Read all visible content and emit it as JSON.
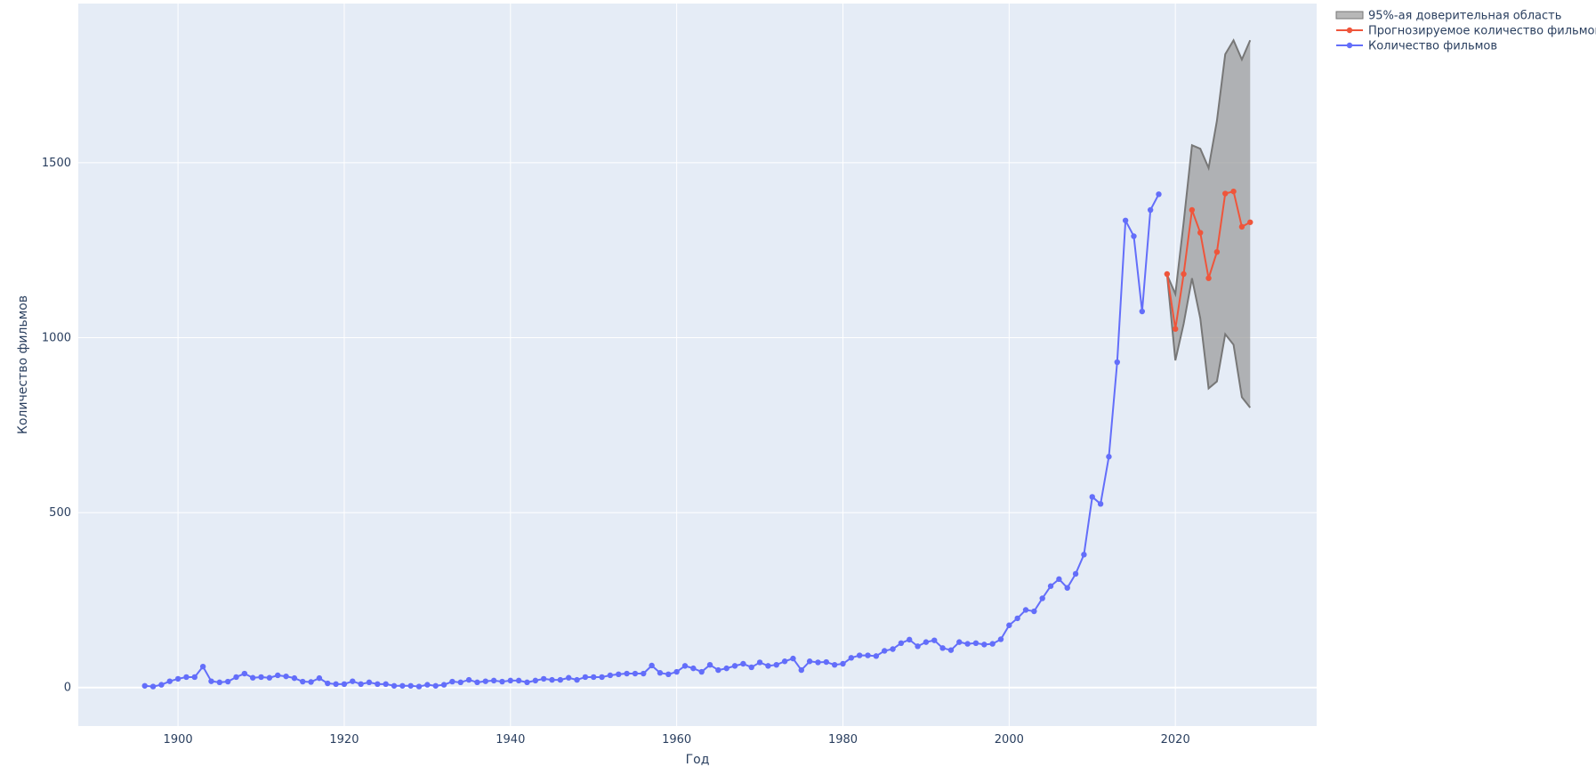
{
  "chart_data": {
    "type": "line",
    "xlabel": "Год",
    "ylabel": "Количество фильмов",
    "xlim": [
      1888,
      2037
    ],
    "ylim": [
      -110,
      1955
    ],
    "x_ticks": [
      1900,
      1920,
      1940,
      1960,
      1980,
      2000,
      2020
    ],
    "y_ticks": [
      0,
      500,
      1000,
      1500
    ],
    "grid": true,
    "legend_position": "top-right (outside plot area)",
    "colors": {
      "plot_bg": "#e5ecf6",
      "grid": "#ffffff",
      "actual": "#636efa",
      "forecast": "#ef553b",
      "band_fill": "#999999",
      "band_line": "#777777"
    },
    "legend": [
      {
        "key": "ci",
        "label": "95%-ая доверительная область"
      },
      {
        "key": "forecast",
        "label": "Прогнозируемое количество фильмов"
      },
      {
        "key": "actual",
        "label": "Количество фильмов"
      }
    ],
    "series": [
      {
        "key": "actual",
        "name": "Количество фильмов",
        "x": [
          1896,
          1897,
          1898,
          1899,
          1900,
          1901,
          1902,
          1903,
          1904,
          1905,
          1906,
          1907,
          1908,
          1909,
          1910,
          1911,
          1912,
          1913,
          1914,
          1915,
          1916,
          1917,
          1918,
          1919,
          1920,
          1921,
          1922,
          1923,
          1924,
          1925,
          1926,
          1927,
          1928,
          1929,
          1930,
          1931,
          1932,
          1933,
          1934,
          1935,
          1936,
          1937,
          1938,
          1939,
          1940,
          1941,
          1942,
          1943,
          1944,
          1945,
          1946,
          1947,
          1948,
          1949,
          1950,
          1951,
          1952,
          1953,
          1954,
          1955,
          1956,
          1957,
          1958,
          1959,
          1960,
          1961,
          1962,
          1963,
          1964,
          1965,
          1966,
          1967,
          1968,
          1969,
          1970,
          1971,
          1972,
          1973,
          1974,
          1975,
          1976,
          1977,
          1978,
          1979,
          1980,
          1981,
          1982,
          1983,
          1984,
          1985,
          1986,
          1987,
          1988,
          1989,
          1990,
          1991,
          1992,
          1993,
          1994,
          1995,
          1996,
          1997,
          1998,
          1999,
          2000,
          2001,
          2002,
          2003,
          2004,
          2005,
          2006,
          2007,
          2008,
          2009,
          2010,
          2011,
          2012,
          2013,
          2014,
          2015,
          2016,
          2017,
          2018
        ],
        "y": [
          5,
          3,
          8,
          18,
          25,
          30,
          30,
          60,
          18,
          15,
          17,
          30,
          40,
          28,
          30,
          28,
          35,
          32,
          27,
          17,
          16,
          27,
          12,
          10,
          10,
          18,
          10,
          15,
          10,
          10,
          5,
          5,
          5,
          3,
          8,
          5,
          8,
          17,
          15,
          22,
          15,
          18,
          20,
          17,
          20,
          20,
          15,
          20,
          25,
          22,
          22,
          28,
          22,
          30,
          30,
          30,
          35,
          38,
          40,
          40,
          40,
          63,
          42,
          38,
          45,
          62,
          55,
          45,
          65,
          50,
          55,
          62,
          68,
          58,
          72,
          62,
          65,
          75,
          83,
          50,
          75,
          72,
          73,
          65,
          68,
          85,
          92,
          92,
          90,
          105,
          110,
          127,
          137,
          118,
          130,
          135,
          113,
          107,
          130,
          125,
          127,
          123,
          125,
          138,
          178,
          198,
          222,
          218,
          255,
          290,
          310,
          285,
          325,
          380,
          545,
          525,
          660,
          930,
          1335,
          1290,
          1075,
          1365,
          1410
        ]
      },
      {
        "key": "forecast",
        "name": "Прогнозируемое количество фильмов",
        "x": [
          2019,
          2020,
          2021,
          2022,
          2023,
          2024,
          2025,
          2026,
          2027,
          2028,
          2029
        ],
        "y": [
          1182,
          1025,
          1182,
          1365,
          1300,
          1170,
          1245,
          1412,
          1418,
          1317,
          1330
        ]
      }
    ],
    "confidence_band": {
      "name": "95%-ая доверительная область",
      "x": [
        2019,
        2020,
        2021,
        2022,
        2023,
        2024,
        2025,
        2026,
        2027,
        2028,
        2029
      ],
      "upper": [
        1180,
        1125,
        1330,
        1550,
        1540,
        1485,
        1620,
        1810,
        1850,
        1795,
        1850
      ],
      "lower": [
        1180,
        935,
        1040,
        1170,
        1055,
        855,
        875,
        1010,
        980,
        830,
        800
      ]
    }
  }
}
